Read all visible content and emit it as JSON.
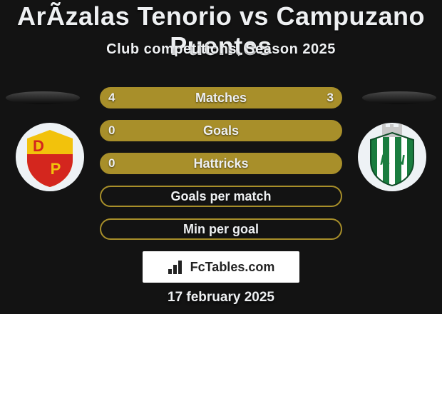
{
  "title": "ArÃzalas Tenorio vs Campuzano Puentes",
  "subtitle": "Club competitions, Season 2025",
  "datestamp": "17 february 2025",
  "brand": "FcTables.com",
  "colors": {
    "bg_top": "#131313",
    "bg_bottom": "#ffffff",
    "pill_border": "#a88f2a",
    "pill_fill": "#a88f2a",
    "pill_empty": "#131313",
    "text": "#eef0f2",
    "brand_text": "#222222"
  },
  "rows": [
    {
      "label": "Matches",
      "left": "4",
      "right": "3",
      "filled": true
    },
    {
      "label": "Goals",
      "left": "0",
      "right": "",
      "filled": true
    },
    {
      "label": "Hattricks",
      "left": "0",
      "right": "",
      "filled": true
    },
    {
      "label": "Goals per match",
      "left": "",
      "right": "",
      "filled": false
    },
    {
      "label": "Min per goal",
      "left": "",
      "right": "",
      "filled": false
    }
  ],
  "crest_left": {
    "outer": "#eef2f5",
    "shield_top": "#f2c20c",
    "shield_bottom": "#d4261e",
    "letters": "DP",
    "letter_color": "#f2c20c"
  },
  "crest_right": {
    "outer": "#eef2f5",
    "stripes": [
      "#1a7d3f",
      "#ffffff"
    ],
    "castle": "#c8c8c8",
    "letters": "AN",
    "letter_color": "#1a7d3f"
  }
}
